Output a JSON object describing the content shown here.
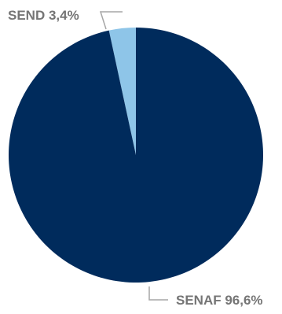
{
  "chart_data": {
    "type": "pie",
    "slices": [
      {
        "name": "SEND",
        "value": 3.4,
        "label": "SEND 3,4%",
        "color": "#8EC5E8"
      },
      {
        "name": "SENAF",
        "value": 96.6,
        "label": "SENAF 96,6%",
        "color": "#002B5C"
      }
    ],
    "start_angle_deg": 0,
    "direction": "counterclockwise",
    "leader_line_color": "#A6A6A6",
    "label_color": "#757575"
  }
}
